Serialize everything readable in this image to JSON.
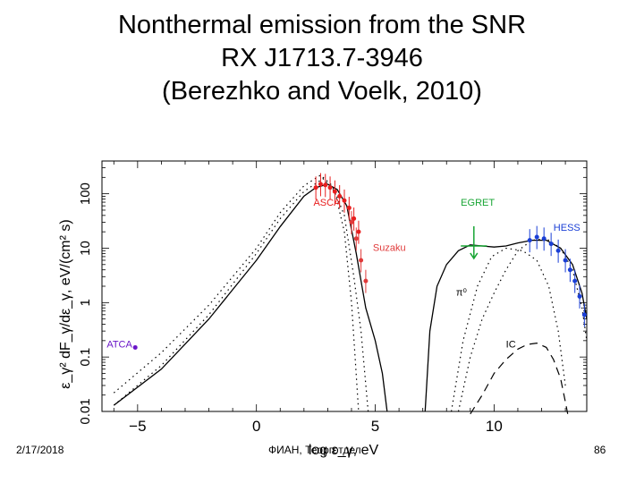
{
  "slide": {
    "title_lines": [
      "Nonthermal emission from the SNR",
      "RX J1713.7-3946",
      "(Berezhko and Voelk, 2010)"
    ],
    "footer_date": "2/17/2018",
    "footer_org": "ФИАН, Теорготдел",
    "page_number": "86"
  },
  "chart_data": {
    "type": "line",
    "x_scale": "log10(ε_γ / eV)",
    "y_scale": "log",
    "xlabel": "log ε_γ, eV",
    "ylabel": "ε_γ² dF_γ/dε_γ, eV/(cm² s)",
    "xlim": [
      -6.5,
      13.9
    ],
    "ylim": [
      0.01,
      400
    ],
    "x_ticks": [
      -5,
      0,
      5,
      10
    ],
    "x_tick_labels": [
      "−5",
      "0",
      "5",
      "10"
    ],
    "y_ticks": [
      0.01,
      0.1,
      1,
      10,
      100
    ],
    "y_tick_labels": [
      "0.01",
      "0.1",
      "1",
      "10",
      "100"
    ],
    "grid": false,
    "colors": {
      "asca": "#e81e1e",
      "hess": "#1a3fd6",
      "egret": "#18a534",
      "suzaku": "#e03a3a",
      "atca": "#6a16c8",
      "model": "#000000"
    },
    "annotations": [
      {
        "text": "ASCA",
        "x": 2.4,
        "y": 60,
        "color": "#e81e1e"
      },
      {
        "text": "EGRET",
        "x": 8.6,
        "y": 60,
        "color": "#18a534"
      },
      {
        "text": "HESS",
        "x": 12.5,
        "y": 21,
        "color": "#1a3fd6"
      },
      {
        "text": "Suzaku",
        "x": 4.9,
        "y": 9,
        "color": "#e03a3a"
      },
      {
        "text": "π⁰",
        "x": 8.4,
        "y": 1.35,
        "color": "#000000"
      },
      {
        "text": "ATCA",
        "x": -6.3,
        "y": 0.15,
        "color": "#6a16c8"
      },
      {
        "text": "IC",
        "x": 10.5,
        "y": 0.15,
        "color": "#000000"
      }
    ],
    "series": [
      {
        "style": "solid",
        "points": [
          [
            -6,
            0.013
          ],
          [
            -4,
            0.06
          ],
          [
            -2,
            0.5
          ],
          [
            0,
            6
          ],
          [
            1,
            25
          ],
          [
            2,
            90
          ],
          [
            2.5,
            130
          ],
          [
            3,
            150
          ],
          [
            3.4,
            120
          ],
          [
            3.8,
            60
          ],
          [
            4.2,
            8
          ],
          [
            4.6,
            0.8
          ],
          [
            5,
            0.2
          ],
          [
            5.3,
            0.05
          ],
          [
            5.5,
            0.01
          ]
        ]
      },
      {
        "style": "solid",
        "points": [
          [
            7.1,
            0.01
          ],
          [
            7.3,
            0.3
          ],
          [
            7.6,
            2
          ],
          [
            8,
            5
          ],
          [
            8.5,
            9
          ],
          [
            9,
            11.5
          ],
          [
            9.5,
            11
          ],
          [
            10,
            10.5
          ],
          [
            10.5,
            11
          ],
          [
            11,
            12.5
          ],
          [
            11.6,
            14
          ],
          [
            12.2,
            14
          ],
          [
            12.8,
            10
          ],
          [
            13.3,
            5
          ],
          [
            13.7,
            1.5
          ],
          [
            13.9,
            0.5
          ]
        ]
      },
      {
        "style": "dotted",
        "points": [
          [
            -6,
            0.022
          ],
          [
            -4,
            0.12
          ],
          [
            -2,
            0.9
          ],
          [
            0,
            10
          ],
          [
            1,
            45
          ],
          [
            2,
            140
          ],
          [
            2.7,
            220
          ],
          [
            3.2,
            140
          ],
          [
            3.7,
            40
          ],
          [
            4.1,
            3
          ],
          [
            4.4,
            0.3
          ],
          [
            4.7,
            0.01
          ]
        ]
      },
      {
        "style": "dotted",
        "points": [
          [
            -6,
            0.013
          ],
          [
            -4,
            0.07
          ],
          [
            -2,
            0.6
          ],
          [
            0,
            8
          ],
          [
            1,
            35
          ],
          [
            2,
            110
          ],
          [
            2.8,
            190
          ],
          [
            3.3,
            110
          ],
          [
            3.7,
            20
          ],
          [
            4,
            1
          ],
          [
            4.15,
            0.1
          ],
          [
            4.3,
            0.01
          ]
        ]
      },
      {
        "style": "dotted",
        "points": [
          [
            8.5,
            0.01
          ],
          [
            9,
            0.1
          ],
          [
            9.5,
            0.5
          ],
          [
            10,
            1.5
          ],
          [
            10.5,
            4
          ],
          [
            11,
            9
          ],
          [
            11.6,
            14
          ],
          [
            12.2,
            15
          ],
          [
            12.8,
            10
          ],
          [
            13.3,
            4
          ],
          [
            13.7,
            0.8
          ],
          [
            13.9,
            0.2
          ]
        ]
      },
      {
        "style": "dotted",
        "points": [
          [
            8.2,
            0.01
          ],
          [
            8.7,
            0.2
          ],
          [
            9.3,
            2
          ],
          [
            9.9,
            7
          ],
          [
            10.5,
            10
          ],
          [
            11.2,
            9
          ],
          [
            11.8,
            6
          ],
          [
            12.3,
            2
          ],
          [
            12.7,
            0.3
          ],
          [
            13,
            0.03
          ]
        ]
      },
      {
        "style": "dashed",
        "points": [
          [
            9,
            0.009
          ],
          [
            9.5,
            0.02
          ],
          [
            10,
            0.05
          ],
          [
            10.5,
            0.09
          ],
          [
            11,
            0.14
          ],
          [
            11.4,
            0.17
          ],
          [
            11.8,
            0.18
          ],
          [
            12.2,
            0.15
          ],
          [
            12.5,
            0.09
          ],
          [
            12.8,
            0.04
          ],
          [
            13,
            0.015
          ],
          [
            13.1,
            0.009
          ]
        ]
      }
    ],
    "data_points": {
      "asca": [
        [
          2.5,
          130
        ],
        [
          2.7,
          150
        ],
        [
          2.9,
          145
        ],
        [
          3.1,
          130
        ],
        [
          3.3,
          110
        ],
        [
          3.5,
          90
        ],
        [
          3.7,
          75
        ],
        [
          3.9,
          55
        ],
        [
          4.1,
          35
        ],
        [
          4.3,
          20
        ]
      ],
      "suzaku": [
        [
          4.0,
          30
        ],
        [
          4.2,
          15
        ],
        [
          4.4,
          6
        ],
        [
          4.6,
          2.5
        ]
      ],
      "hess": [
        [
          11.5,
          14
        ],
        [
          11.8,
          16
        ],
        [
          12.1,
          15
        ],
        [
          12.4,
          12
        ],
        [
          12.7,
          9
        ],
        [
          13.0,
          6
        ],
        [
          13.2,
          4
        ],
        [
          13.4,
          2.5
        ],
        [
          13.6,
          1.3
        ],
        [
          13.8,
          0.6
        ]
      ],
      "egret_upper_limit": {
        "x_range": [
          8.6,
          9.7
        ],
        "y": 11
      },
      "atca": [
        [
          -5.1,
          0.15
        ]
      ]
    }
  }
}
